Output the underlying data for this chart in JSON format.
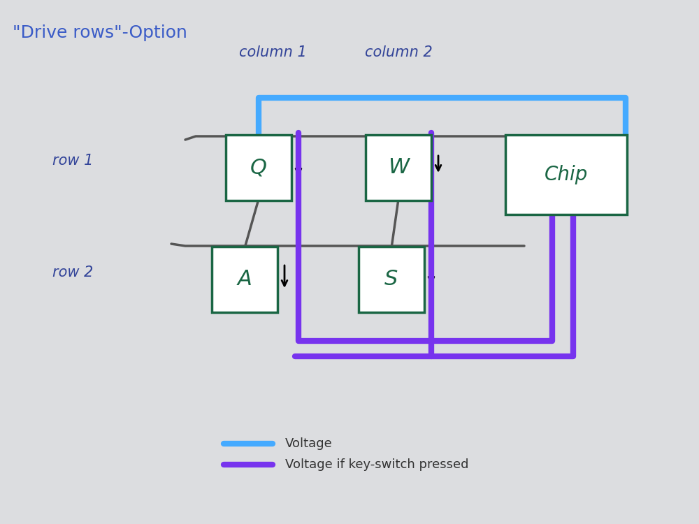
{
  "title": "\"Drive rows\"-Option",
  "title_color": "#3a5bc7",
  "bg_color": "#dcdde0",
  "col1_label": "column 1",
  "col2_label": "column 2",
  "row1_label": "row 1",
  "row2_label": "row 2",
  "blue_color": "#45aaff",
  "purple_color": "#7733ee",
  "purple2_color": "#8844ff",
  "wire_color": "#555555",
  "key_border_color": "#1a6644",
  "key_text_color": "#1a6644",
  "chip_border_color": "#1a6644",
  "chip_text_color": "#1a6644",
  "legend_blue": "Voltage",
  "legend_purple": "Voltage if key-switch pressed"
}
